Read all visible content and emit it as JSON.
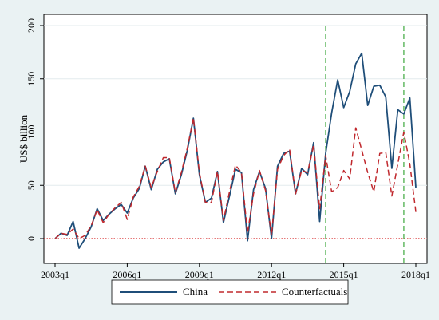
{
  "chart_data": {
    "type": "line",
    "ylabel": "US$ billion",
    "xlabel": "",
    "xlim": [
      2003.0,
      2018.0
    ],
    "ylim": [
      0,
      200
    ],
    "x_ticks": [
      {
        "x": 2003.0,
        "label": "2003q1"
      },
      {
        "x": 2006.0,
        "label": "2006q1"
      },
      {
        "x": 2009.0,
        "label": "2009q1"
      },
      {
        "x": 2012.0,
        "label": "2012q1"
      },
      {
        "x": 2015.0,
        "label": "2015q1"
      },
      {
        "x": 2018.0,
        "label": "2018q1"
      }
    ],
    "y_ticks": [
      {
        "y": 0,
        "label": "0"
      },
      {
        "y": 50,
        "label": "50"
      },
      {
        "y": 100,
        "label": "100"
      },
      {
        "y": 150,
        "label": "150"
      },
      {
        "y": 200,
        "label": "200"
      }
    ],
    "grid": "horizontal",
    "legend_position": "bottom",
    "reference_lines": {
      "horizontal": {
        "y": 0,
        "color": "#d62728",
        "style": "dotted"
      },
      "vertical": [
        {
          "x": 2014.25,
          "color": "#2ca02c",
          "style": "dashed"
        },
        {
          "x": 2017.5,
          "color": "#2ca02c",
          "style": "dashed"
        }
      ]
    },
    "series": [
      {
        "name": "China",
        "color": "#1f4e79",
        "style": "solid",
        "points": [
          [
            2003.0,
            0
          ],
          [
            2003.25,
            5
          ],
          [
            2003.5,
            3
          ],
          [
            2003.75,
            16
          ],
          [
            2004.0,
            -9
          ],
          [
            2004.25,
            0
          ],
          [
            2004.5,
            11
          ],
          [
            2004.75,
            28
          ],
          [
            2005.0,
            17
          ],
          [
            2005.25,
            23
          ],
          [
            2005.5,
            28
          ],
          [
            2005.75,
            32
          ],
          [
            2006.0,
            24
          ],
          [
            2006.25,
            38
          ],
          [
            2006.5,
            47
          ],
          [
            2006.75,
            68
          ],
          [
            2007.0,
            46
          ],
          [
            2007.25,
            65
          ],
          [
            2007.5,
            72
          ],
          [
            2007.75,
            75
          ],
          [
            2008.0,
            42
          ],
          [
            2008.25,
            60
          ],
          [
            2008.5,
            83
          ],
          [
            2008.75,
            113
          ],
          [
            2009.0,
            60
          ],
          [
            2009.25,
            34
          ],
          [
            2009.5,
            38
          ],
          [
            2009.75,
            63
          ],
          [
            2010.0,
            15
          ],
          [
            2010.25,
            40
          ],
          [
            2010.5,
            65
          ],
          [
            2010.75,
            62
          ],
          [
            2011.0,
            -2
          ],
          [
            2011.25,
            46
          ],
          [
            2011.5,
            63
          ],
          [
            2011.75,
            47
          ],
          [
            2012.0,
            0
          ],
          [
            2012.25,
            68
          ],
          [
            2012.5,
            80
          ],
          [
            2012.75,
            82
          ],
          [
            2013.0,
            42
          ],
          [
            2013.25,
            66
          ],
          [
            2013.5,
            60
          ],
          [
            2013.75,
            90
          ],
          [
            2014.0,
            16
          ],
          [
            2014.25,
            80
          ],
          [
            2014.5,
            118
          ],
          [
            2014.75,
            149
          ],
          [
            2015.0,
            123
          ],
          [
            2015.25,
            138
          ],
          [
            2015.5,
            164
          ],
          [
            2015.75,
            174
          ],
          [
            2016.0,
            125
          ],
          [
            2016.25,
            143
          ],
          [
            2016.5,
            144
          ],
          [
            2016.75,
            133
          ],
          [
            2017.0,
            66
          ],
          [
            2017.25,
            121
          ],
          [
            2017.5,
            117
          ],
          [
            2017.75,
            132
          ],
          [
            2018.0,
            48
          ]
        ]
      },
      {
        "name": "Counterfactuals",
        "color": "#c0282d",
        "style": "dashed",
        "points": [
          [
            2003.0,
            0
          ],
          [
            2003.25,
            5
          ],
          [
            2003.5,
            4
          ],
          [
            2003.75,
            9
          ],
          [
            2004.0,
            0
          ],
          [
            2004.25,
            3
          ],
          [
            2004.5,
            12
          ],
          [
            2004.75,
            27
          ],
          [
            2005.0,
            15
          ],
          [
            2005.25,
            23
          ],
          [
            2005.5,
            29
          ],
          [
            2005.75,
            34
          ],
          [
            2006.0,
            18
          ],
          [
            2006.25,
            39
          ],
          [
            2006.5,
            49
          ],
          [
            2006.75,
            68
          ],
          [
            2007.0,
            48
          ],
          [
            2007.25,
            63
          ],
          [
            2007.5,
            76
          ],
          [
            2007.75,
            76
          ],
          [
            2008.0,
            43
          ],
          [
            2008.25,
            62
          ],
          [
            2008.5,
            85
          ],
          [
            2008.75,
            113
          ],
          [
            2009.0,
            62
          ],
          [
            2009.25,
            34
          ],
          [
            2009.5,
            34
          ],
          [
            2009.75,
            63
          ],
          [
            2010.0,
            17
          ],
          [
            2010.25,
            44
          ],
          [
            2010.5,
            69
          ],
          [
            2010.75,
            62
          ],
          [
            2011.0,
            5
          ],
          [
            2011.25,
            42
          ],
          [
            2011.5,
            64
          ],
          [
            2011.75,
            45
          ],
          [
            2012.0,
            3
          ],
          [
            2012.25,
            65
          ],
          [
            2012.5,
            78
          ],
          [
            2012.75,
            84
          ],
          [
            2013.0,
            42
          ],
          [
            2013.25,
            64
          ],
          [
            2013.5,
            62
          ],
          [
            2013.75,
            88
          ],
          [
            2014.0,
            28
          ],
          [
            2014.25,
            78
          ],
          [
            2014.5,
            44
          ],
          [
            2014.75,
            48
          ],
          [
            2015.0,
            64
          ],
          [
            2015.25,
            56
          ],
          [
            2015.5,
            104
          ],
          [
            2015.75,
            83
          ],
          [
            2016.0,
            62
          ],
          [
            2016.25,
            44
          ],
          [
            2016.5,
            80
          ],
          [
            2016.75,
            81
          ],
          [
            2017.0,
            40
          ],
          [
            2017.25,
            70
          ],
          [
            2017.5,
            100
          ],
          [
            2017.75,
            70
          ],
          [
            2018.0,
            25
          ]
        ]
      }
    ]
  }
}
